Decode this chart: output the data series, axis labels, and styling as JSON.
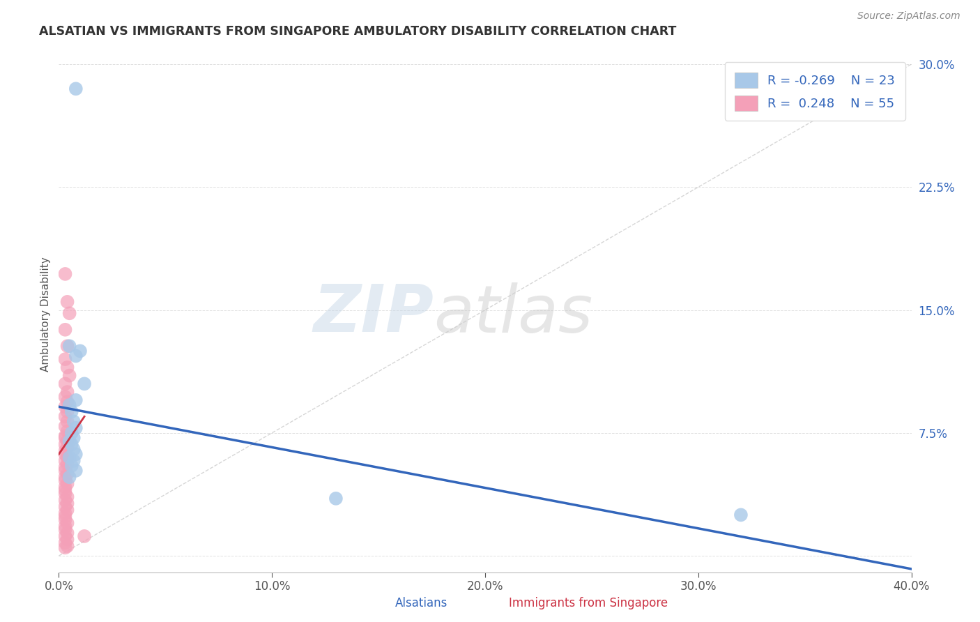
{
  "title": "ALSATIAN VS IMMIGRANTS FROM SINGAPORE AMBULATORY DISABILITY CORRELATION CHART",
  "source": "Source: ZipAtlas.com",
  "xlabel_alsatians": "Alsatians",
  "xlabel_immigrants": "Immigrants from Singapore",
  "ylabel": "Ambulatory Disability",
  "legend_r1": "R = -0.269",
  "legend_n1": "N = 23",
  "legend_r2": "R =  0.248",
  "legend_n2": "N = 55",
  "xlim": [
    0.0,
    0.4
  ],
  "ylim": [
    -0.01,
    0.305
  ],
  "xticks": [
    0.0,
    0.1,
    0.2,
    0.3,
    0.4
  ],
  "yticks": [
    0.0,
    0.075,
    0.15,
    0.225,
    0.3
  ],
  "xtick_labels": [
    "0.0%",
    "10.0%",
    "20.0%",
    "30.0%",
    "40.0%"
  ],
  "ytick_labels": [
    "",
    "7.5%",
    "15.0%",
    "22.5%",
    "30.0%"
  ],
  "color_alsatian": "#a8c8e8",
  "color_immigrant": "#f4a0b8",
  "line_color_alsatian": "#3366bb",
  "line_color_immigrant": "#cc3344",
  "background_color": "#ffffff",
  "watermark_zip": "ZIP",
  "watermark_atlas": "atlas",
  "alsatian_x": [
    0.008,
    0.005,
    0.008,
    0.01,
    0.012,
    0.008,
    0.005,
    0.006,
    0.007,
    0.008,
    0.006,
    0.007,
    0.005,
    0.006,
    0.007,
    0.008,
    0.005,
    0.007,
    0.006,
    0.008,
    0.005,
    0.13,
    0.32
  ],
  "alsatian_y": [
    0.285,
    0.128,
    0.122,
    0.125,
    0.105,
    0.095,
    0.092,
    0.088,
    0.082,
    0.078,
    0.075,
    0.072,
    0.07,
    0.068,
    0.065,
    0.062,
    0.06,
    0.058,
    0.055,
    0.052,
    0.048,
    0.035,
    0.025
  ],
  "immigrant_x": [
    0.003,
    0.004,
    0.005,
    0.003,
    0.004,
    0.003,
    0.004,
    0.005,
    0.003,
    0.004,
    0.003,
    0.004,
    0.003,
    0.004,
    0.003,
    0.004,
    0.003,
    0.004,
    0.003,
    0.003,
    0.004,
    0.003,
    0.004,
    0.003,
    0.003,
    0.004,
    0.003,
    0.004,
    0.003,
    0.003,
    0.004,
    0.003,
    0.003,
    0.004,
    0.003,
    0.003,
    0.003,
    0.004,
    0.003,
    0.004,
    0.003,
    0.004,
    0.003,
    0.003,
    0.003,
    0.004,
    0.003,
    0.003,
    0.004,
    0.003,
    0.004,
    0.003,
    0.004,
    0.003,
    0.012
  ],
  "immigrant_y": [
    0.172,
    0.155,
    0.148,
    0.138,
    0.128,
    0.12,
    0.115,
    0.11,
    0.105,
    0.1,
    0.097,
    0.094,
    0.091,
    0.088,
    0.085,
    0.082,
    0.079,
    0.076,
    0.073,
    0.072,
    0.07,
    0.068,
    0.066,
    0.064,
    0.062,
    0.06,
    0.058,
    0.056,
    0.054,
    0.052,
    0.05,
    0.048,
    0.046,
    0.044,
    0.042,
    0.04,
    0.038,
    0.036,
    0.034,
    0.032,
    0.03,
    0.028,
    0.026,
    0.024,
    0.022,
    0.02,
    0.018,
    0.016,
    0.014,
    0.012,
    0.01,
    0.008,
    0.006,
    0.005,
    0.012
  ],
  "blue_line_x0": 0.0,
  "blue_line_y0": 0.091,
  "blue_line_x1": 0.4,
  "blue_line_y1": -0.008,
  "red_line_x0": 0.0,
  "red_line_y0": 0.062,
  "red_line_x1": 0.012,
  "red_line_y1": 0.085
}
